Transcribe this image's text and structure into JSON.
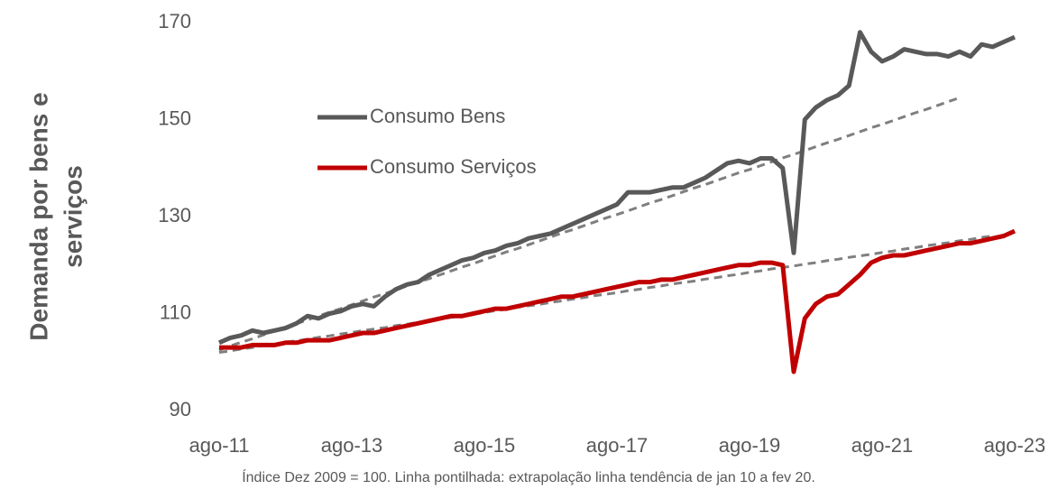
{
  "chart_data": {
    "type": "line",
    "ylabel": [
      "Demanda por bens e",
      "serviços"
    ],
    "note": "Índice Dez 2009 = 100. Linha pontilhada: extrapolação linha tendência de jan 10 a fev 20.",
    "categories": [
      "ago-11",
      null,
      null,
      null,
      null,
      null,
      null,
      null,
      null,
      null,
      null,
      null,
      "ago-13",
      null,
      null,
      null,
      null,
      null,
      null,
      null,
      null,
      null,
      null,
      null,
      "ago-15",
      null,
      null,
      null,
      null,
      null,
      null,
      null,
      null,
      null,
      null,
      null,
      "ago-17",
      null,
      null,
      null,
      null,
      null,
      null,
      null,
      null,
      null,
      null,
      null,
      "ago-19",
      null,
      null,
      null,
      null,
      null,
      null,
      null,
      null,
      null,
      null,
      null,
      "ago-21",
      null,
      null,
      null,
      null,
      null,
      null,
      null,
      null,
      null,
      null,
      null,
      "ago-23"
    ],
    "series": [
      {
        "name": "Consumo Bens",
        "color": "#595959",
        "values": [
          104,
          105,
          105.5,
          106.5,
          106,
          106.5,
          107,
          108,
          109.5,
          109,
          110,
          110.5,
          111.5,
          112,
          111.5,
          113.5,
          115,
          116,
          116.5,
          118,
          119,
          120,
          121,
          121.5,
          122.5,
          123,
          124,
          124.5,
          125.5,
          126,
          126.5,
          127.5,
          128.5,
          129.5,
          130.5,
          131.5,
          132.5,
          135,
          135,
          135,
          135.5,
          136,
          136,
          137,
          138,
          139.5,
          141,
          141.5,
          141,
          142,
          142,
          140,
          122.5,
          150,
          152.5,
          154,
          155,
          157,
          168,
          164,
          162,
          163,
          164.5,
          164,
          163.5,
          163.5,
          163,
          164,
          163,
          165.5,
          165,
          166,
          167
        ]
      },
      {
        "name": "Consumo Serviços",
        "color": "#c00000",
        "values": [
          103,
          103,
          103,
          103.5,
          103.5,
          103.5,
          104,
          104,
          104.5,
          104.5,
          104.5,
          105,
          105.5,
          106,
          106,
          106.5,
          107,
          107.5,
          108,
          108.5,
          109,
          109.5,
          109.5,
          110,
          110.5,
          111,
          111,
          111.5,
          112,
          112.5,
          113,
          113.5,
          113.5,
          114,
          114.5,
          115,
          115.5,
          116,
          116.5,
          116.5,
          117,
          117,
          117.5,
          118,
          118.5,
          119,
          119.5,
          120,
          120,
          120.5,
          120.5,
          120,
          98,
          109,
          112,
          113.5,
          114,
          116,
          118,
          120.5,
          121.5,
          122,
          122,
          122.5,
          123,
          123.5,
          124,
          124.5,
          124.5,
          125,
          125.5,
          126,
          127
        ]
      },
      {
        "color": "#7f7f7f",
        "dashed": true,
        "values": [
          102.5,
          103.3,
          104.1,
          104.8,
          105.6,
          106.4,
          107.2,
          107.9,
          108.7,
          109.5,
          110.3,
          111.0,
          111.8,
          112.6,
          113.4,
          114.1,
          114.9,
          115.7,
          116.5,
          117.2,
          118.0,
          118.8,
          119.6,
          120.3,
          121.1,
          121.9,
          122.7,
          123.4,
          124.2,
          125.0,
          125.8,
          126.6,
          127.3,
          128.1,
          128.9,
          129.7,
          130.4,
          131.2,
          132.0,
          132.8,
          133.5,
          134.3,
          135.1,
          135.9,
          136.6,
          137.4,
          138.2,
          139.0,
          139.7,
          140.5,
          141.3,
          142.1,
          142.8,
          143.6,
          144.4,
          145.2,
          145.9,
          146.7,
          147.5,
          148.3,
          149.0,
          149.8,
          150.6,
          151.4,
          152.1,
          152.9,
          153.7,
          154.5,
          null,
          null,
          null,
          null,
          null
        ]
      },
      {
        "color": "#7f7f7f",
        "dashed": true,
        "values": [
          102.0,
          102.3,
          102.7,
          103.0,
          103.4,
          103.7,
          104.1,
          104.4,
          104.7,
          105.1,
          105.4,
          105.8,
          106.1,
          106.5,
          106.8,
          107.1,
          107.5,
          107.8,
          108.2,
          108.5,
          108.9,
          109.2,
          109.5,
          109.9,
          110.2,
          110.6,
          110.9,
          111.3,
          111.6,
          111.9,
          112.3,
          112.6,
          113.0,
          113.3,
          113.7,
          114.0,
          114.3,
          114.7,
          115.0,
          115.4,
          115.7,
          116.1,
          116.4,
          116.7,
          117.1,
          117.4,
          117.8,
          118.1,
          118.5,
          118.8,
          119.2,
          119.5,
          119.8,
          120.2,
          120.5,
          120.9,
          121.2,
          121.6,
          121.9,
          122.2,
          122.6,
          122.9,
          123.3,
          123.6,
          124.0,
          124.3,
          124.6,
          125.0,
          125.3,
          125.7,
          126.0,
          null,
          null
        ]
      }
    ],
    "ylim": [
      90,
      170
    ],
    "yticks": [
      90,
      110,
      130,
      150,
      170
    ],
    "legend": "upper left"
  }
}
